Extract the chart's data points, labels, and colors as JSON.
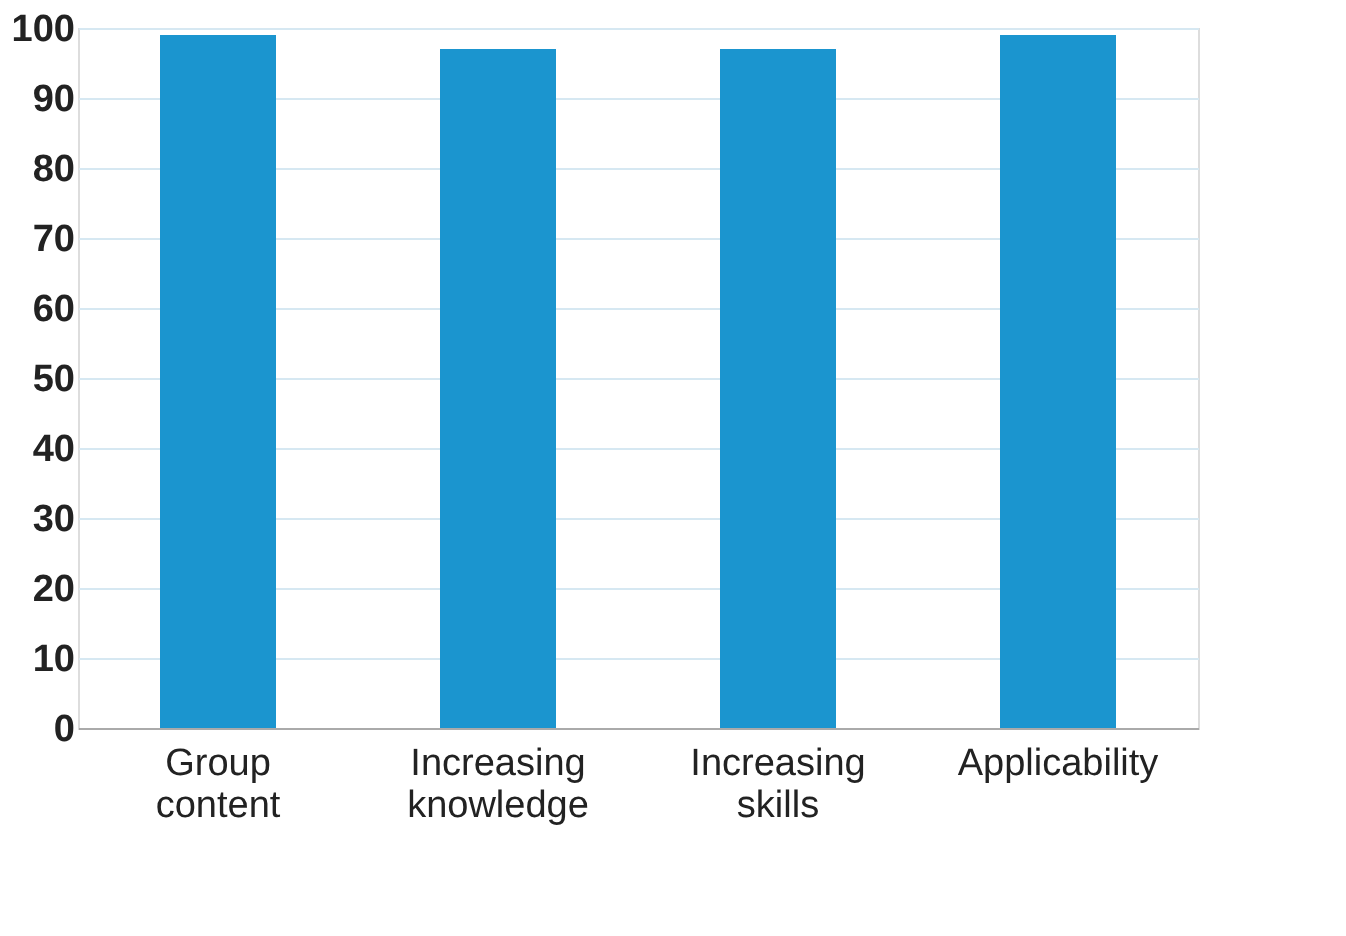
{
  "chart_data": {
    "type": "bar",
    "categories": [
      "Group content",
      "Increasing knowledge",
      "Increasing skills",
      "Applicability"
    ],
    "values": [
      99,
      97,
      97,
      99
    ],
    "color": "#1b95cf",
    "ylim": [
      0,
      100
    ],
    "yticks": [
      0,
      10,
      20,
      30,
      40,
      50,
      60,
      70,
      80,
      90,
      100
    ],
    "grid": "y"
  }
}
